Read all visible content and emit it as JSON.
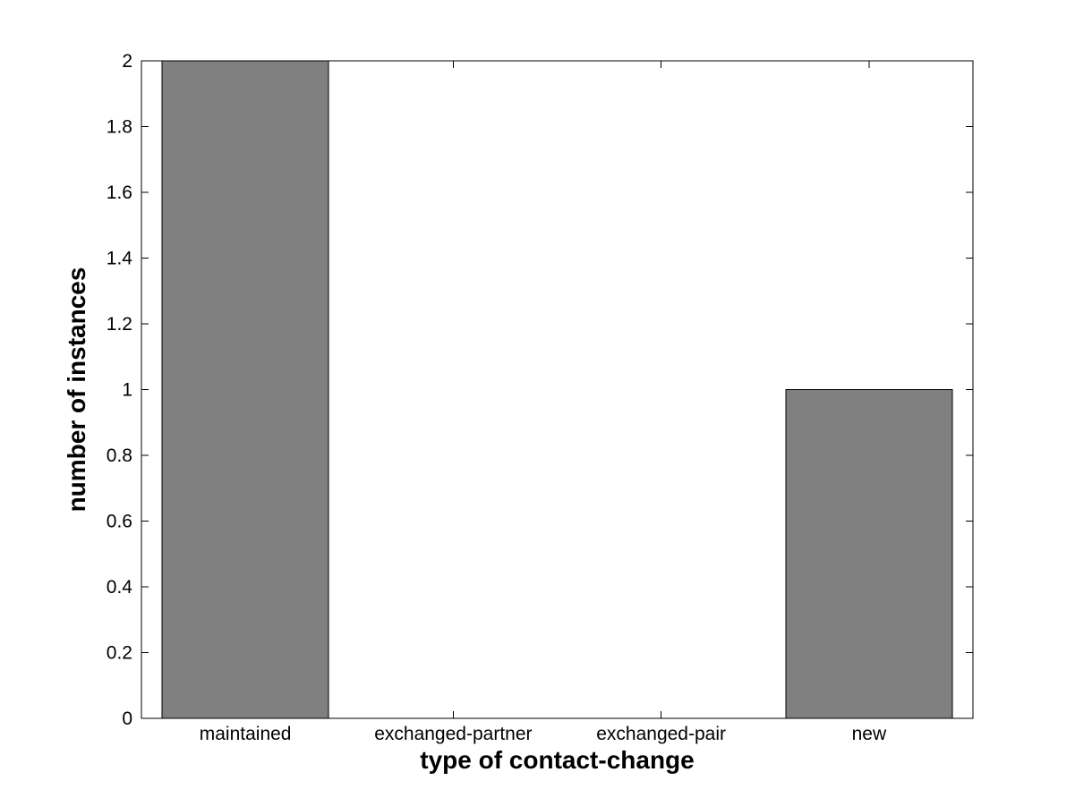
{
  "chart_data": {
    "type": "bar",
    "categories": [
      "maintained",
      "exchanged-partner",
      "exchanged-pair",
      "new"
    ],
    "values": [
      2,
      0,
      0,
      1
    ],
    "title": "",
    "xlabel": "type of contact-change",
    "ylabel": "number of instances",
    "ylim": [
      0,
      2
    ],
    "yticks": [
      0,
      0.2,
      0.4,
      0.6,
      0.8,
      1,
      1.2,
      1.4,
      1.6,
      1.8,
      2
    ],
    "ytick_labels": [
      "0",
      "0.2",
      "0.4",
      "0.6",
      "0.8",
      "1",
      "1.2",
      "1.4",
      "1.6",
      "1.8",
      "2"
    ],
    "grid": false,
    "bar_width_fraction": 0.8,
    "colors": {
      "bar_fill": "#808080",
      "bar_edge": "#000000",
      "axis": "#000000",
      "text": "#000000",
      "background": "#ffffff"
    }
  }
}
